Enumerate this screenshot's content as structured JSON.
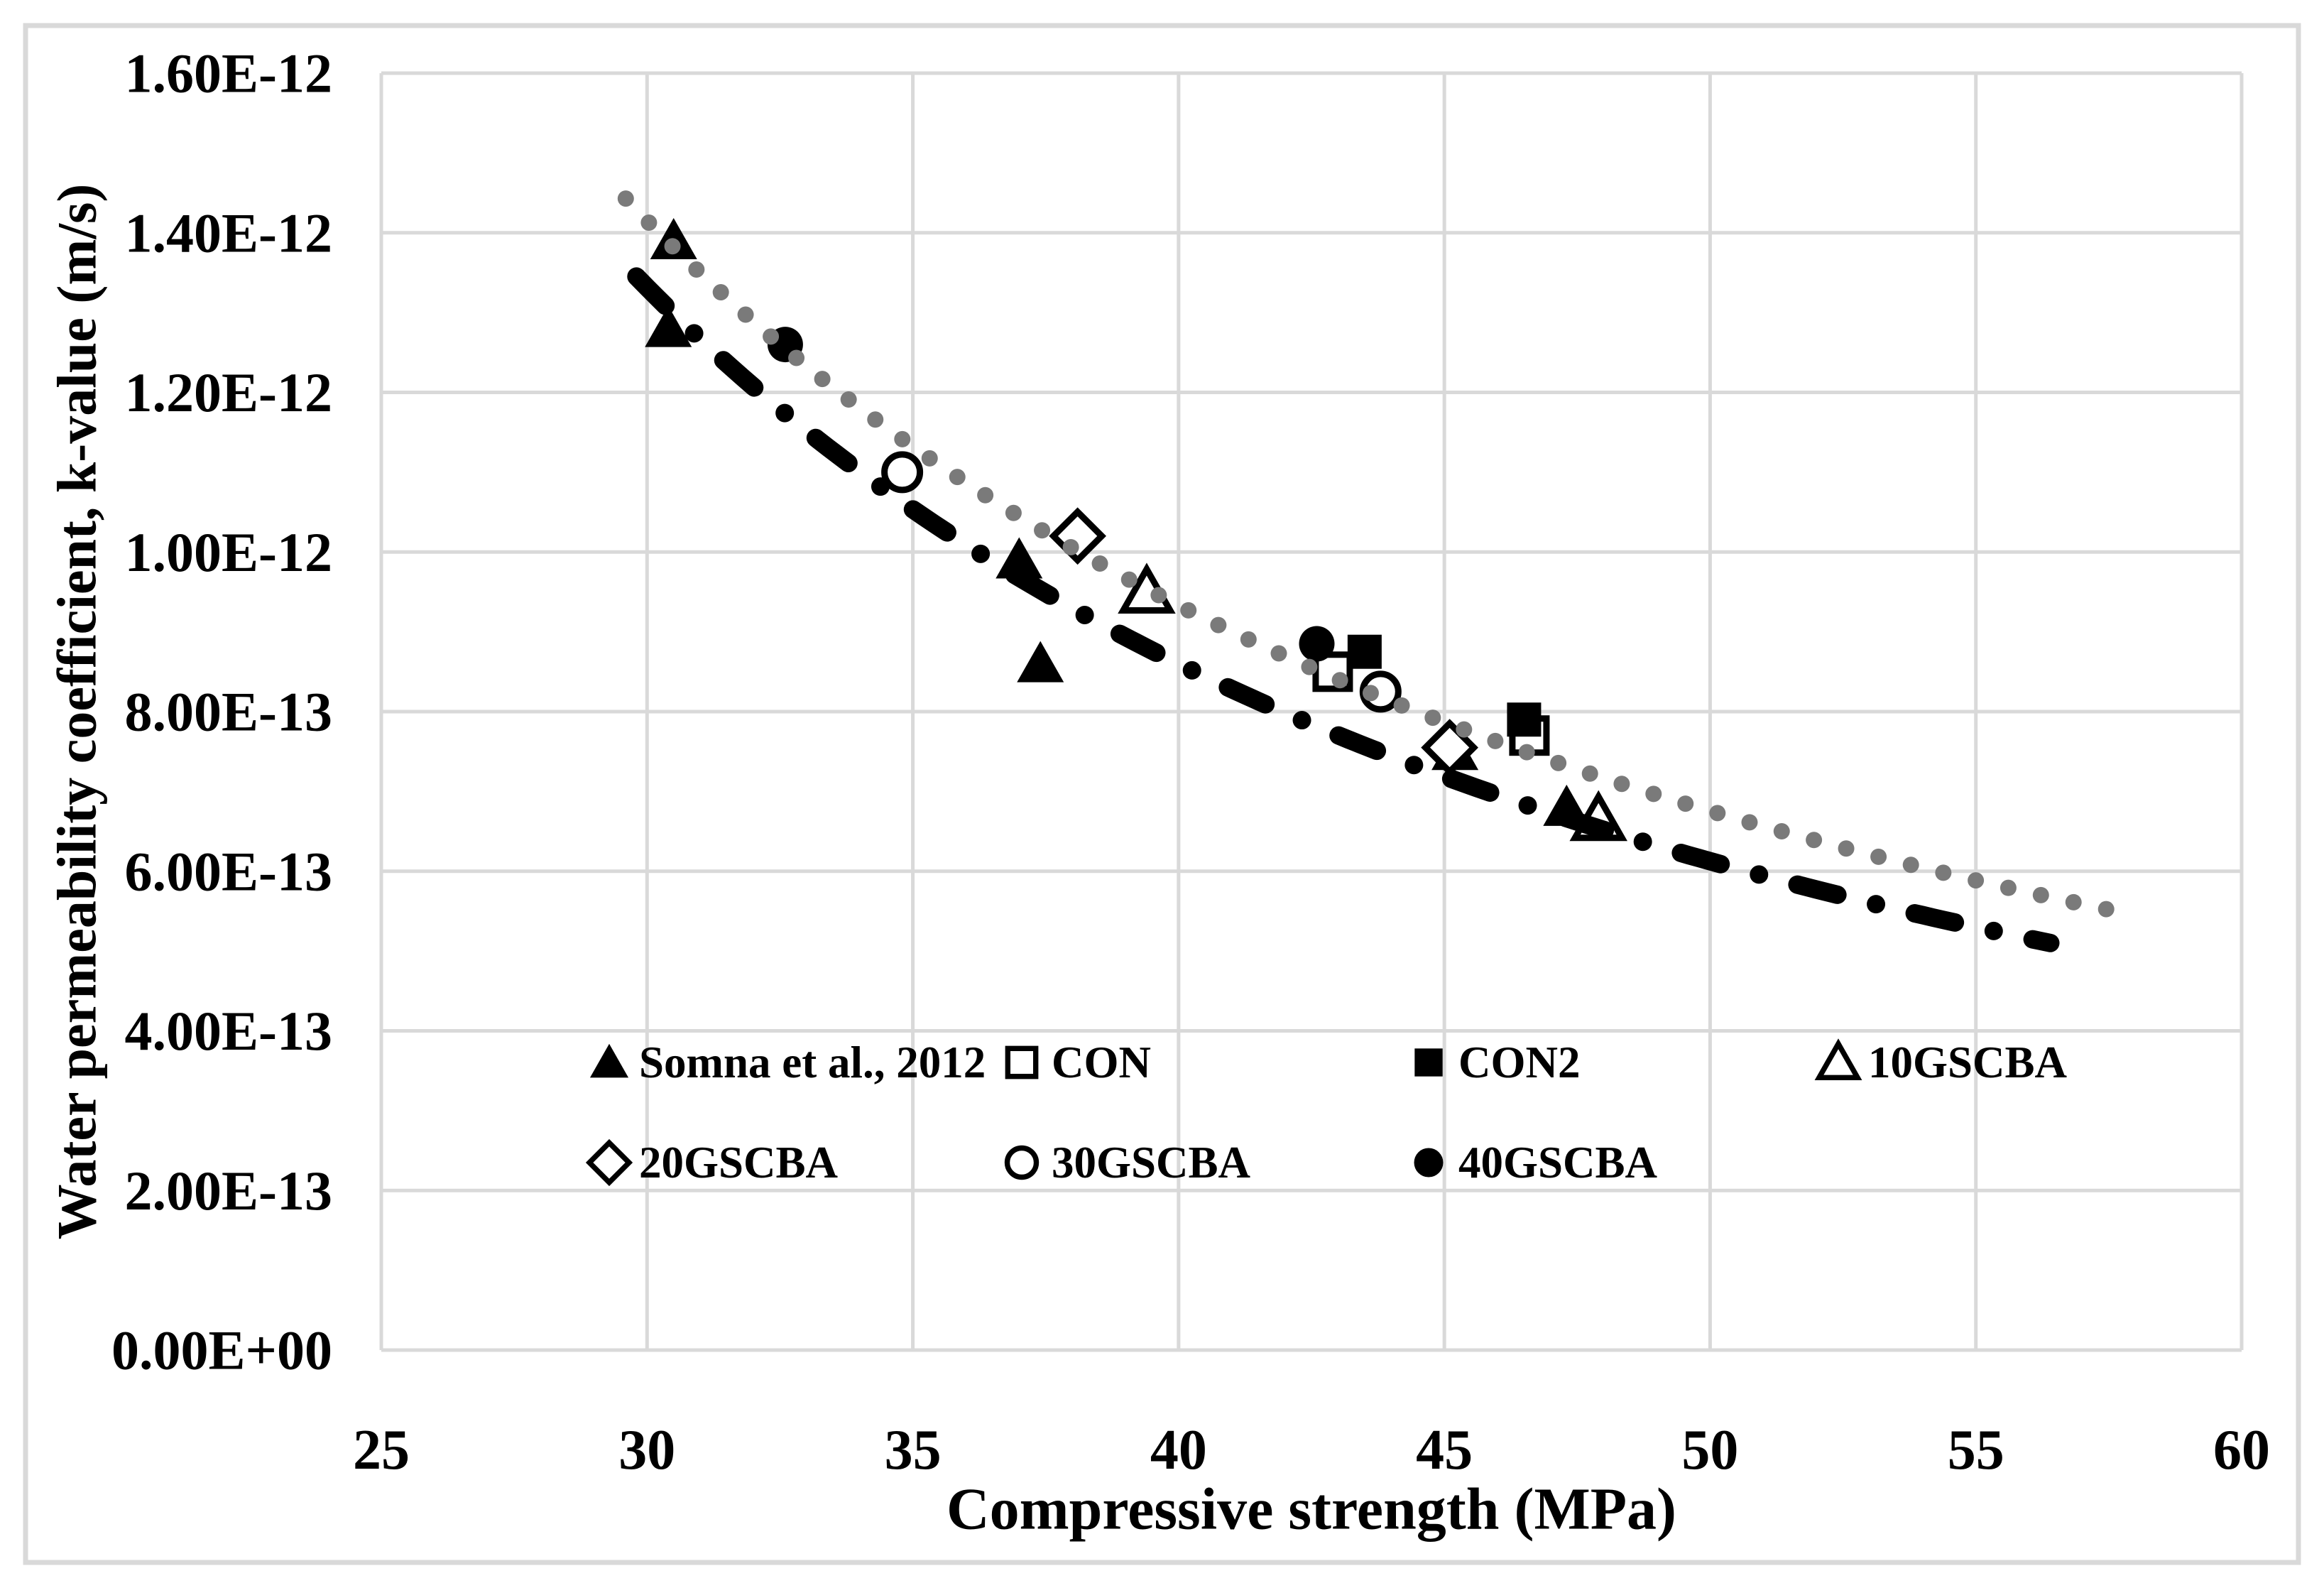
{
  "figure": {
    "background": "#ffffff",
    "frame_color": "#d9d9d9",
    "grid_color": "#d9d9d9",
    "text_color": "#000000",
    "dotted_trendline_color": "#7a7a7a",
    "dashdot_trendline_color": "#000000"
  },
  "chart_data": {
    "type": "scatter",
    "title": "",
    "xlabel": "Compressive strength (MPa)",
    "ylabel": "Water permeability coefficient, k-value (m/s)",
    "xlim": [
      25,
      60
    ],
    "ylim": [
      0,
      1.6e-12
    ],
    "grid": true,
    "legend_position": "inside-bottom, two rows",
    "x_ticks": [
      {
        "value": 25,
        "label": "25"
      },
      {
        "value": 30,
        "label": "30"
      },
      {
        "value": 35,
        "label": "35"
      },
      {
        "value": 40,
        "label": "40"
      },
      {
        "value": 45,
        "label": "45"
      },
      {
        "value": 50,
        "label": "50"
      },
      {
        "value": 55,
        "label": "55"
      },
      {
        "value": 60,
        "label": "60"
      }
    ],
    "y_ticks": [
      {
        "value": 0,
        "label": "0.00E+00"
      },
      {
        "value": 2e-13,
        "label": "2.00E-13"
      },
      {
        "value": 4e-13,
        "label": "4.00E-13"
      },
      {
        "value": 6e-13,
        "label": "6.00E-13"
      },
      {
        "value": 8e-13,
        "label": "8.00E-13"
      },
      {
        "value": 1e-12,
        "label": "1.00E-12"
      },
      {
        "value": 1.2e-12,
        "label": "1.20E-12"
      },
      {
        "value": 1.4e-12,
        "label": "1.40E-12"
      },
      {
        "value": 1.6e-12,
        "label": "1.60E-12"
      }
    ],
    "series": [
      {
        "id": "somna-et-al-2012",
        "name": "Somna et al., 2012",
        "marker": "triangle-filled",
        "color": "#000000",
        "points": [
          [
            30.5,
            1.39e-12
          ],
          [
            30.4,
            1.28e-12
          ],
          [
            37.0,
            9.9e-13
          ],
          [
            37.4,
            8.6e-13
          ],
          [
            45.2,
            7.5e-13
          ],
          [
            47.3,
            6.8e-13
          ]
        ]
      },
      {
        "id": "con",
        "name": "CON",
        "marker": "square-open",
        "color": "#000000",
        "points": [
          [
            42.9,
            8.5e-13
          ],
          [
            46.6,
            7.7e-13
          ]
        ]
      },
      {
        "id": "con2",
        "name": "CON2",
        "marker": "square-filled",
        "color": "#000000",
        "points": [
          [
            43.5,
            8.75e-13
          ],
          [
            46.5,
            7.9e-13
          ]
        ]
      },
      {
        "id": "10gscba",
        "name": "10GSCBA",
        "marker": "triangle-open",
        "color": "#000000",
        "points": [
          [
            39.4,
            9.5e-13
          ],
          [
            47.9,
            6.65e-13
          ]
        ]
      },
      {
        "id": "20gscba",
        "name": "20GSCBA",
        "marker": "diamond-open",
        "color": "#000000",
        "points": [
          [
            38.1,
            1.02e-12
          ],
          [
            45.1,
            7.55e-13
          ]
        ]
      },
      {
        "id": "30gscba",
        "name": "30GSCBA",
        "marker": "circle-open",
        "color": "#000000",
        "points": [
          [
            34.8,
            1.1e-12
          ],
          [
            43.8,
            8.25e-13
          ]
        ]
      },
      {
        "id": "40gscba",
        "name": "40GSCBA",
        "marker": "circle-filled",
        "color": "#000000",
        "points": [
          [
            32.6,
            1.26e-12
          ],
          [
            42.6,
            8.85e-13
          ]
        ]
      }
    ],
    "trendlines": [
      {
        "id": "dotted-gray-trendline",
        "style": "round-dot",
        "color": "#7a7a7a",
        "x_range": [
          29.6,
          58.0
        ],
        "start_k": 1.44e-12,
        "end_k": 5.45e-13,
        "power_fit": {
          "a": 1.945e-10,
          "b": -1.4475
        }
      },
      {
        "id": "dash-dot-black-trendline",
        "style": "long-dash-dot",
        "color": "#000000",
        "x_range": [
          29.8,
          56.4
        ],
        "start_k": 1.35e-12,
        "end_k": 5.1e-13,
        "power_fit": {
          "a": 2.342e-10,
          "b": -1.52
        }
      }
    ],
    "legend_rows": [
      [
        "somna-et-al-2012",
        "con",
        "con2",
        "10gscba"
      ],
      [
        "20gscba",
        "30gscba",
        "40gscba"
      ]
    ]
  }
}
